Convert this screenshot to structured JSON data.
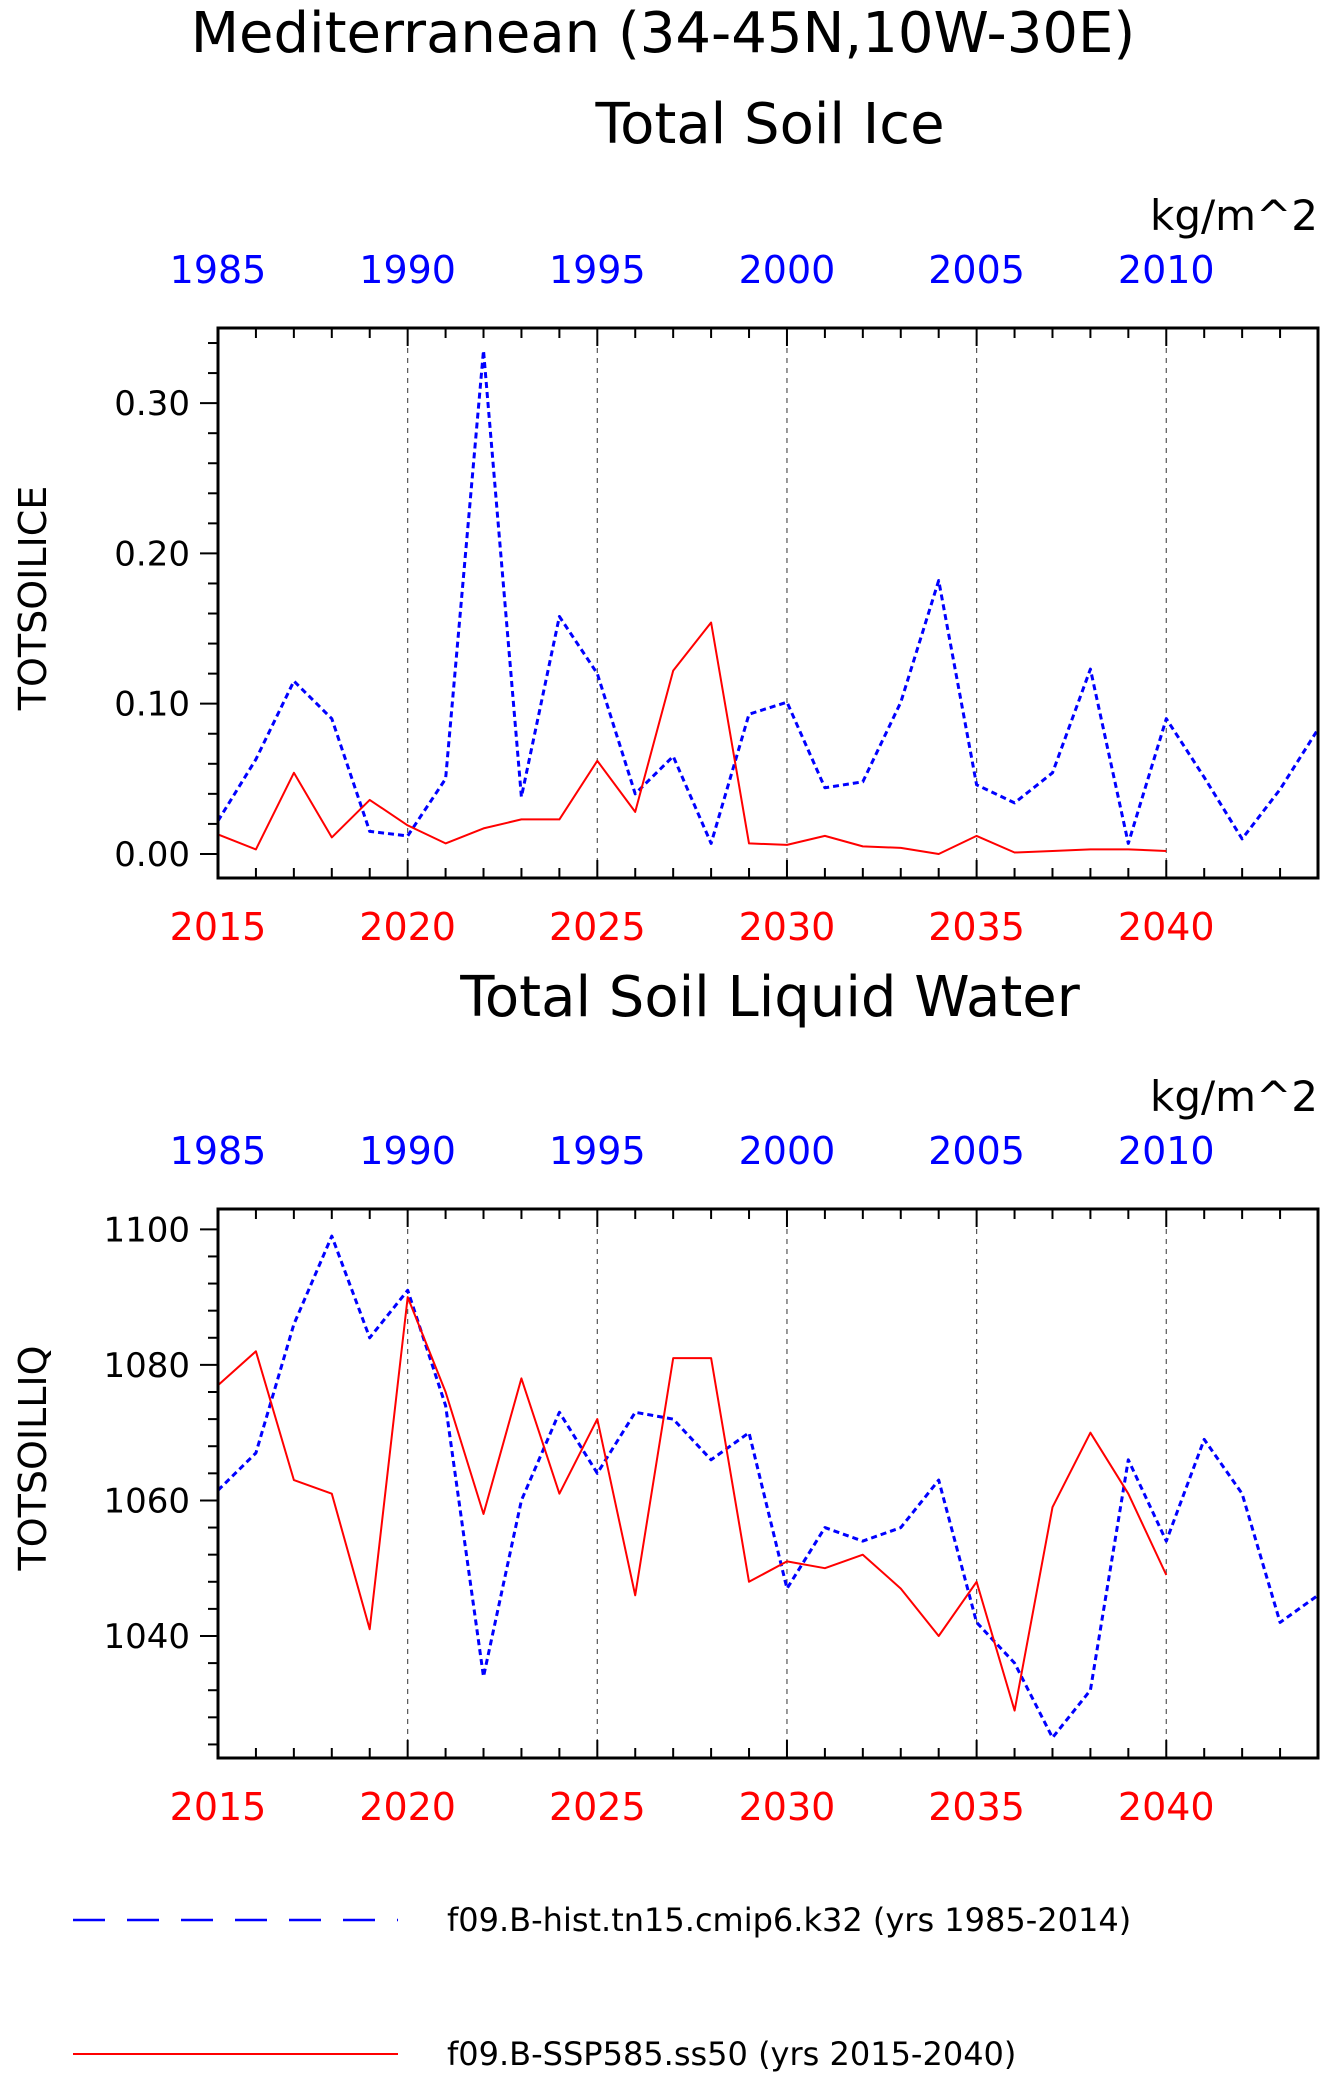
{
  "figure": {
    "title": "Mediterranean (34-45N,10W-30E)"
  },
  "colors": {
    "hist": "#0000ff",
    "ssp": "#ff0000",
    "axis": "#000000",
    "grid": "#555555"
  },
  "legend": {
    "hist_label": "f09.B-hist.tn15.cmip6.k32 (yrs 1985-2014)",
    "ssp_label": "f09.B-SSP585.ss50 (yrs 2015-2040)"
  },
  "chart_data": [
    {
      "type": "line",
      "title": "Total Soil Ice",
      "ylabel": "TOTSOILICE",
      "units": "kg/m^2",
      "ylim": [
        -0.016,
        0.35
      ],
      "yticks": [
        0.0,
        0.1,
        0.2,
        0.3
      ],
      "yticklabels": [
        "0.00",
        "0.10",
        "0.20",
        "0.30"
      ],
      "yminor_step": 0.02,
      "x_bottom": {
        "range": [
          2015,
          2044
        ],
        "ticks": [
          2015,
          2020,
          2025,
          2030,
          2035,
          2040
        ],
        "labels": [
          "2015",
          "2020",
          "2025",
          "2030",
          "2035",
          "2040"
        ]
      },
      "x_top": {
        "range": [
          1985,
          2014
        ],
        "ticks": [
          1985,
          1990,
          1995,
          2000,
          2005,
          2010
        ],
        "labels": [
          "1985",
          "1990",
          "1995",
          "2000",
          "2005",
          "2010"
        ]
      },
      "grid_x": true,
      "series": [
        {
          "name": "f09.B-hist.tn15.cmip6.k32 (yrs 1985-2014)",
          "axis": "top",
          "style": "dashed",
          "x": [
            1985,
            1986,
            1987,
            1988,
            1989,
            1990,
            1991,
            1992,
            1993,
            1994,
            1995,
            1996,
            1997,
            1998,
            1999,
            2000,
            2001,
            2002,
            2003,
            2004,
            2005,
            2006,
            2007,
            2008,
            2009,
            2010,
            2011,
            2012,
            2013,
            2014
          ],
          "values": [
            0.022,
            0.063,
            0.115,
            0.09,
            0.015,
            0.012,
            0.05,
            0.335,
            0.038,
            0.158,
            0.12,
            0.04,
            0.065,
            0.007,
            0.093,
            0.101,
            0.044,
            0.048,
            0.101,
            0.182,
            0.046,
            0.034,
            0.054,
            0.123,
            0.007,
            0.09,
            0.051,
            0.01,
            0.043,
            0.083
          ]
        },
        {
          "name": "f09.B-SSP585.ss50 (yrs 2015-2040)",
          "axis": "bottom",
          "style": "solid",
          "x": [
            2015,
            2016,
            2017,
            2018,
            2019,
            2020,
            2021,
            2022,
            2023,
            2024,
            2025,
            2026,
            2027,
            2028,
            2029,
            2030,
            2031,
            2032,
            2033,
            2034,
            2035,
            2036,
            2037,
            2038,
            2039,
            2040
          ],
          "values": [
            0.013,
            0.003,
            0.054,
            0.011,
            0.036,
            0.019,
            0.007,
            0.017,
            0.023,
            0.023,
            0.062,
            0.028,
            0.122,
            0.154,
            0.007,
            0.006,
            0.012,
            0.005,
            0.004,
            0.0,
            0.012,
            0.001,
            0.002,
            0.003,
            0.003,
            0.002
          ]
        }
      ]
    },
    {
      "type": "line",
      "title": "Total Soil Liquid Water",
      "ylabel": "TOTSOILLIQ",
      "units": "kg/m^2",
      "ylim": [
        1022,
        1103
      ],
      "yticks": [
        1040,
        1060,
        1080,
        1100
      ],
      "yticklabels": [
        "1040",
        "1060",
        "1080",
        "1100"
      ],
      "yminor_step": 4,
      "x_bottom": {
        "range": [
          2015,
          2044
        ],
        "ticks": [
          2015,
          2020,
          2025,
          2030,
          2035,
          2040
        ],
        "labels": [
          "2015",
          "2020",
          "2025",
          "2030",
          "2035",
          "2040"
        ]
      },
      "x_top": {
        "range": [
          1985,
          2014
        ],
        "ticks": [
          1985,
          1990,
          1995,
          2000,
          2005,
          2010
        ],
        "labels": [
          "1985",
          "1990",
          "1995",
          "2000",
          "2005",
          "2010"
        ]
      },
      "grid_x": true,
      "series": [
        {
          "name": "f09.B-hist.tn15.cmip6.k32 (yrs 1985-2014)",
          "axis": "top",
          "style": "dashed",
          "x": [
            1985,
            1986,
            1987,
            1988,
            1989,
            1990,
            1991,
            1992,
            1993,
            1994,
            1995,
            1996,
            1997,
            1998,
            1999,
            2000,
            2001,
            2002,
            2003,
            2004,
            2005,
            2006,
            2007,
            2008,
            2009,
            2010,
            2011,
            2012,
            2013,
            2014
          ],
          "values": [
            1061.5,
            1067,
            1086,
            1099,
            1084,
            1091,
            1074,
            1034,
            1060,
            1073,
            1064,
            1073,
            1072,
            1066,
            1070,
            1047,
            1056,
            1054,
            1056,
            1063,
            1042,
            1036,
            1025,
            1032,
            1066,
            1054,
            1069,
            1061,
            1042,
            1046
          ]
        },
        {
          "name": "f09.B-SSP585.ss50 (yrs 2015-2040)",
          "axis": "bottom",
          "style": "solid",
          "x": [
            2015,
            2016,
            2017,
            2018,
            2019,
            2020,
            2021,
            2022,
            2023,
            2024,
            2025,
            2026,
            2027,
            2028,
            2029,
            2030,
            2031,
            2032,
            2033,
            2034,
            2035,
            2036,
            2037,
            2038,
            2039,
            2040
          ],
          "values": [
            1077,
            1082,
            1063,
            1061,
            1041,
            1090,
            1076,
            1058,
            1078,
            1061,
            1072,
            1046,
            1081,
            1081,
            1048,
            1051,
            1050,
            1052,
            1047,
            1040,
            1048,
            1029,
            1059,
            1070,
            1061,
            1049
          ]
        }
      ]
    }
  ]
}
